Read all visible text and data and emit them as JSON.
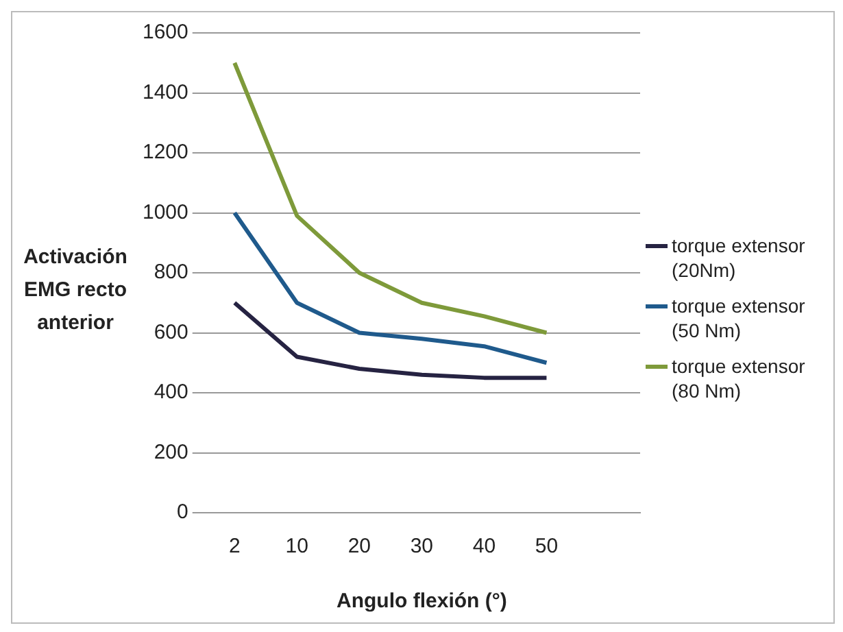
{
  "chart_data": {
    "type": "line",
    "xlabel": "Angulo flexión (°)",
    "ylabel": "Activación EMG recto anterior",
    "categories": [
      "2",
      "10",
      "20",
      "30",
      "40",
      "50",
      null
    ],
    "series": [
      {
        "name": "torque extensor (20Nm)",
        "color": "#262342",
        "values": [
          700,
          520,
          480,
          460,
          450,
          450,
          null
        ]
      },
      {
        "name": "torque extensor (50 Nm)",
        "color": "#1f5a8c",
        "values": [
          1000,
          700,
          600,
          580,
          555,
          500,
          null
        ]
      },
      {
        "name": "torque extensor (80 Nm)",
        "color": "#7e9a3a",
        "values": [
          1500,
          990,
          800,
          700,
          655,
          600,
          null
        ]
      }
    ],
    "ylim": [
      0,
      1600
    ],
    "yticks": [
      0,
      200,
      400,
      600,
      800,
      1000,
      1200,
      1400,
      1600
    ],
    "grid": "y",
    "legend": "right",
    "marker": "none",
    "line_style": "solid"
  }
}
